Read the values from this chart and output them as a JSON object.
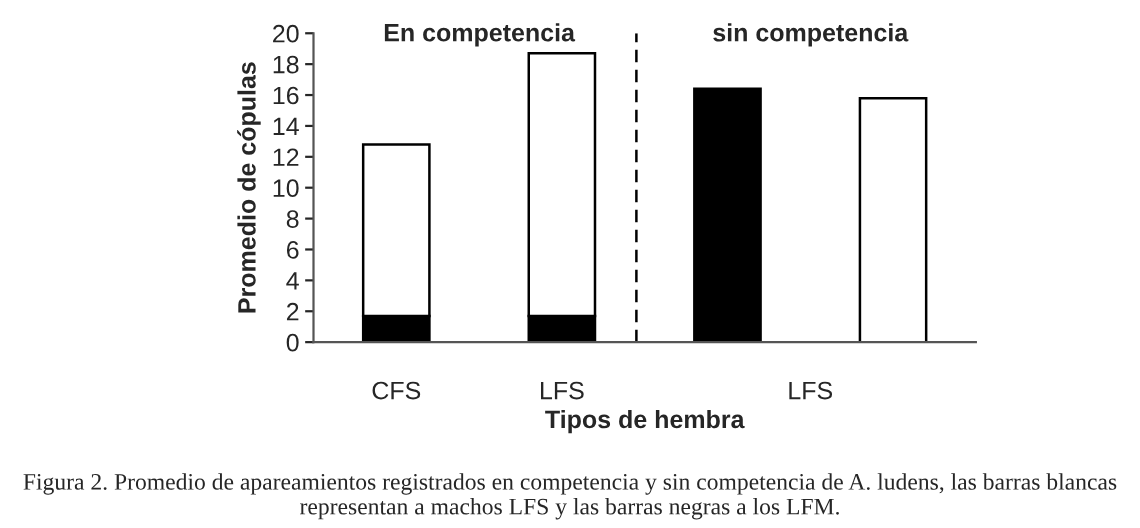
{
  "chart_data": {
    "type": "bar",
    "stacked": true,
    "categories": [
      "CFS",
      "LFS",
      null,
      null
    ],
    "series": [
      {
        "color": "#000000",
        "values": [
          1.7,
          1.7,
          16.4,
          null
        ]
      },
      {
        "color": "#ffffff",
        "values": [
          11.1,
          17.0,
          null,
          15.8
        ]
      }
    ],
    "ylabel": "Promedio de cópulas",
    "xlabel": "Tipos de hembra",
    "ylim": [
      0,
      20
    ],
    "yticks": [
      0,
      2,
      4,
      6,
      8,
      10,
      12,
      14,
      16,
      18,
      20
    ],
    "annotations": [
      "En competencia",
      "sin competencia",
      "LFS",
      "Figura 2. Promedio de apareamientos registrados en competencia y sin competencia de A. ludens, las barras blancas representan a machos LFS y las barras negras a los LFM."
    ],
    "grid": false
  }
}
